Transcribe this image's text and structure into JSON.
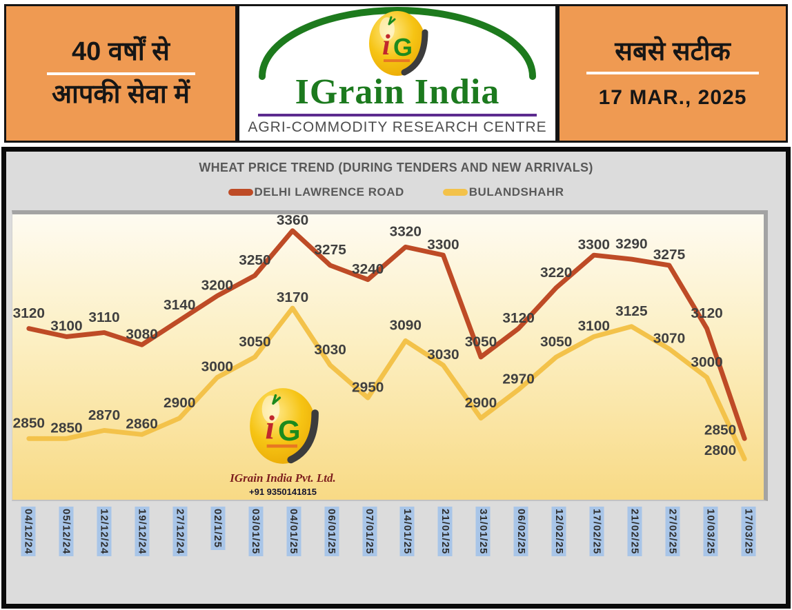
{
  "header": {
    "left": {
      "line1": "40 वर्षों से",
      "line2": "आपकी सेवा में"
    },
    "center": {
      "brand": "IGrain India",
      "monogram_i": "i",
      "monogram_g": "G",
      "tagline": "AGRI-COMMODITY RESEARCH CENTRE",
      "brand_color": "#1c7a1e",
      "rule_color": "#5c2b8f"
    },
    "right": {
      "line1": "सबसे सटीक",
      "date": "17 MAR., 2025"
    },
    "panel_color": "#EF9A52"
  },
  "watermark": {
    "monogram_i": "i",
    "monogram_g": "G",
    "company": "IGrain India Pvt. Ltd.",
    "phone": "+91 9350141815"
  },
  "chart_data": {
    "type": "line",
    "title": "WHEAT PRICE TREND (DURING TENDERS AND NEW ARRIVALS)",
    "categories": [
      "04/12/24",
      "05/12/24",
      "12/12/24",
      "19/12/24",
      "27/12/24",
      "02/1/25",
      "03/01/25",
      "04/01/25",
      "06/01/25",
      "07/01/25",
      "14/01/25",
      "21/01/25",
      "31/01/25",
      "06/02/25",
      "12/02/25",
      "17/02/25",
      "21/02/25",
      "27/02/25",
      "10/03/25",
      "17/03/25"
    ],
    "series": [
      {
        "name": "DELHI LAWRENCE ROAD",
        "color": "#BE4B26",
        "values": [
          3120,
          3100,
          3110,
          3080,
          3140,
          3200,
          3250,
          3360,
          3275,
          3240,
          3320,
          3300,
          3050,
          3120,
          3220,
          3300,
          3290,
          3275,
          3120,
          2850
        ]
      },
      {
        "name": "BULANDSHAHR",
        "color": "#F3C24A",
        "values": [
          2850,
          2850,
          2870,
          2860,
          2900,
          3000,
          3050,
          3170,
          3030,
          2950,
          3090,
          3030,
          2900,
          2970,
          3050,
          3100,
          3125,
          3070,
          3000,
          2800
        ]
      }
    ],
    "xlabel": "",
    "ylabel": "",
    "ylim": [
      2700,
      3400
    ],
    "grid": false,
    "legend_position": "top",
    "data_labels": true,
    "label_color": "#3F3F3F",
    "date_label_bg": "#A8C5E8"
  }
}
